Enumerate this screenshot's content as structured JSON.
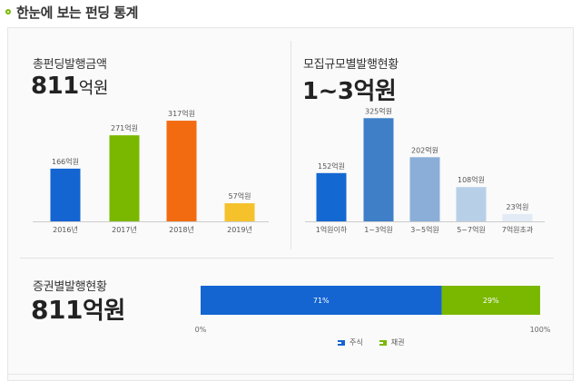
{
  "header": {
    "title": "한눈에 보는 펀딩 통계"
  },
  "panels": {
    "total": {
      "label": "총펀딩발행금액",
      "value": "811",
      "unit": "억원"
    },
    "size": {
      "label": "모집규모별발행현황",
      "value": "1~3",
      "unit": "억원"
    },
    "securities": {
      "label": "증권별발행현황",
      "value": "811",
      "unit": "억원"
    }
  },
  "colors": {
    "blue": "#1464d2",
    "green": "#7ab800",
    "orange": "#f26b10",
    "yellow": "#f6c22b",
    "axis": "#cccccc"
  },
  "chart_data": [
    {
      "type": "bar",
      "categories": [
        "2016년",
        "2017년",
        "2018년",
        "2019년"
      ],
      "values": [
        166,
        271,
        317,
        57
      ],
      "value_labels": [
        "166억원",
        "271억원",
        "317억원",
        "57억원"
      ],
      "colors": [
        "#1464d2",
        "#7ab800",
        "#f26b10",
        "#f6c22b"
      ],
      "ylim": [
        0,
        360
      ]
    },
    {
      "type": "bar",
      "categories": [
        "1억원이하",
        "1~3억원",
        "3~5억원",
        "5~7억원",
        "7억원초과"
      ],
      "values": [
        152,
        325,
        202,
        108,
        23
      ],
      "value_labels": [
        "152억원",
        "325억원",
        "202억원",
        "108억원",
        "23억원"
      ],
      "colors": [
        "#1468d2",
        "#3e7fc8",
        "#8aaed8",
        "#b8cfe8",
        "#e2ebf5"
      ],
      "ylim": [
        0,
        360
      ]
    },
    {
      "type": "bar",
      "orientation": "horizontal-stacked",
      "series": [
        {
          "name": "주식",
          "values": [
            71
          ],
          "label": "71%",
          "color": "#1464d2"
        },
        {
          "name": "채권",
          "values": [
            29
          ],
          "label": "29%",
          "color": "#7ab800"
        }
      ],
      "xlim": [
        0,
        100
      ],
      "tick_labels": [
        "0%",
        "100%"
      ]
    }
  ]
}
